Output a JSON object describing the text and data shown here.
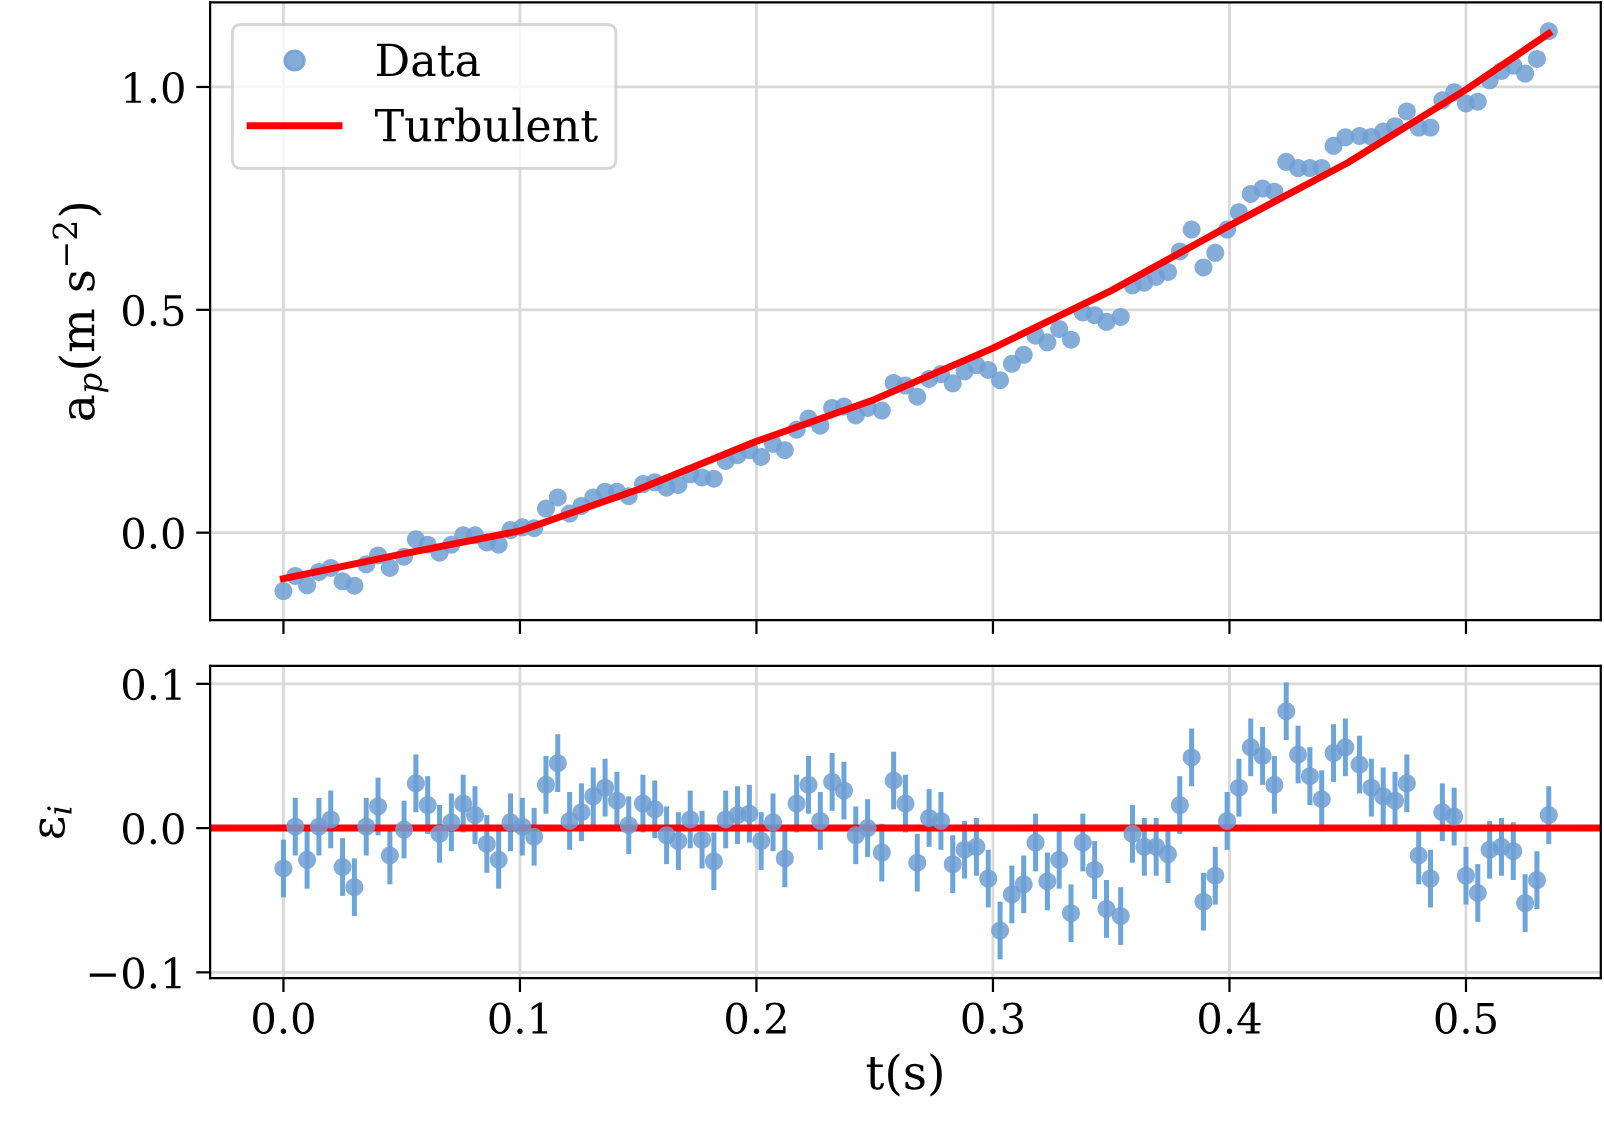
{
  "chart_data": [
    {
      "type": "scatter",
      "ylabel": "a$_{p}$(m s$^{−2}$)",
      "xlim": [
        -0.031,
        0.557
      ],
      "ylim": [
        -0.196,
        1.19
      ],
      "xticks": [
        {
          "value": 0.0,
          "label": null
        },
        {
          "value": 0.1,
          "label": null
        },
        {
          "value": 0.2,
          "label": null
        },
        {
          "value": 0.3,
          "label": null
        },
        {
          "value": 0.4,
          "label": null
        },
        {
          "value": 0.5,
          "label": null
        }
      ],
      "yticks": [
        {
          "value": 0.0,
          "label": "0.0"
        },
        {
          "value": 0.5,
          "label": "0.5"
        },
        {
          "value": 1.0,
          "label": "1.0"
        }
      ],
      "tick_labels": "y",
      "grid": true,
      "legend": "top left",
      "x": [
        0,
        0.005,
        0.01,
        0.015,
        0.02,
        0.025,
        0.03,
        0.035,
        0.04,
        0.045,
        0.051,
        0.056,
        0.061,
        0.066,
        0.071,
        0.076,
        0.081,
        0.086,
        0.091,
        0.096,
        0.101,
        0.106,
        0.111,
        0.116,
        0.121,
        0.126,
        0.131,
        0.136,
        0.141,
        0.146,
        0.152,
        0.157,
        0.162,
        0.167,
        0.172,
        0.177,
        0.182,
        0.187,
        0.192,
        0.197,
        0.202,
        0.207,
        0.212,
        0.217,
        0.222,
        0.227,
        0.232,
        0.237,
        0.242,
        0.247,
        0.253,
        0.258,
        0.263,
        0.268,
        0.273,
        0.278,
        0.283,
        0.288,
        0.293,
        0.298,
        0.303,
        0.308,
        0.313,
        0.318,
        0.323,
        0.328,
        0.333,
        0.338,
        0.343,
        0.348,
        0.354,
        0.359,
        0.364,
        0.369,
        0.374,
        0.379,
        0.384,
        0.389,
        0.394,
        0.399,
        0.404,
        0.409,
        0.414,
        0.419,
        0.424,
        0.429,
        0.434,
        0.439,
        0.444,
        0.449,
        0.455,
        0.46,
        0.465,
        0.47,
        0.475,
        0.48,
        0.485,
        0.49,
        0.495,
        0.5,
        0.505,
        0.51,
        0.515,
        0.52,
        0.525,
        0.53,
        0.535
      ],
      "series": [
        {
          "name": "Data",
          "marker": "circle",
          "color": "#6f9fd3",
          "values": [
            -0.131,
            -0.097,
            -0.118,
            -0.088,
            -0.079,
            -0.109,
            -0.119,
            -0.071,
            -0.051,
            -0.079,
            -0.054,
            -0.015,
            -0.027,
            -0.045,
            -0.027,
            -0.006,
            -0.006,
            -0.022,
            -0.027,
            0.006,
            0.012,
            0.01,
            0.054,
            0.079,
            0.043,
            0.06,
            0.079,
            0.092,
            0.092,
            0.082,
            0.109,
            0.113,
            0.101,
            0.107,
            0.131,
            0.124,
            0.121,
            0.161,
            0.174,
            0.185,
            0.17,
            0.199,
            0.185,
            0.231,
            0.256,
            0.24,
            0.28,
            0.283,
            0.263,
            0.28,
            0.274,
            0.336,
            0.33,
            0.305,
            0.345,
            0.356,
            0.335,
            0.362,
            0.376,
            0.365,
            0.342,
            0.379,
            0.399,
            0.442,
            0.427,
            0.457,
            0.433,
            0.494,
            0.488,
            0.473,
            0.484,
            0.555,
            0.561,
            0.574,
            0.585,
            0.631,
            0.68,
            0.595,
            0.628,
            0.68,
            0.719,
            0.76,
            0.772,
            0.765,
            0.832,
            0.818,
            0.818,
            0.818,
            0.868,
            0.887,
            0.89,
            0.888,
            0.9,
            0.912,
            0.945,
            0.909,
            0.909,
            0.97,
            0.988,
            0.963,
            0.967,
            1.015,
            1.036,
            1.048,
            1.03,
            1.063,
            1.125
          ]
        },
        {
          "name": "Turbulent",
          "type": "line",
          "color": "#ff0000",
          "x": [
            0,
            0.05,
            0.1,
            0.15,
            0.2,
            0.25,
            0.3,
            0.35,
            0.4,
            0.45,
            0.5,
            0.535
          ],
          "values": [
            -0.103,
            -0.048,
            0.004,
            0.097,
            0.205,
            0.299,
            0.414,
            0.543,
            0.689,
            0.83,
            0.994,
            1.12
          ]
        }
      ]
    },
    {
      "type": "scatter",
      "xlabel": "t(s)",
      "ylabel": "ε$_{i}$",
      "xlim": [
        -0.031,
        0.557
      ],
      "ylim": [
        -0.104,
        0.1125
      ],
      "xticks": [
        {
          "value": 0.0,
          "label": "0.0"
        },
        {
          "value": 0.1,
          "label": "0.1"
        },
        {
          "value": 0.2,
          "label": "0.2"
        },
        {
          "value": 0.3,
          "label": "0.3"
        },
        {
          "value": 0.4,
          "label": "0.4"
        },
        {
          "value": 0.5,
          "label": "0.5"
        }
      ],
      "yticks": [
        {
          "value": -0.1,
          "label": "−0.1"
        },
        {
          "value": 0.0,
          "label": "0.0"
        },
        {
          "value": 0.1,
          "label": "0.1"
        }
      ],
      "grid": true,
      "ref_lines": [
        {
          "axis": "y",
          "value": 0,
          "color": "#ff0000"
        }
      ],
      "x": [
        0,
        0.005,
        0.01,
        0.015,
        0.02,
        0.025,
        0.03,
        0.035,
        0.04,
        0.045,
        0.051,
        0.056,
        0.061,
        0.066,
        0.071,
        0.076,
        0.081,
        0.086,
        0.091,
        0.096,
        0.101,
        0.106,
        0.111,
        0.116,
        0.121,
        0.126,
        0.131,
        0.136,
        0.141,
        0.146,
        0.152,
        0.157,
        0.162,
        0.167,
        0.172,
        0.177,
        0.182,
        0.187,
        0.192,
        0.197,
        0.202,
        0.207,
        0.212,
        0.217,
        0.222,
        0.227,
        0.232,
        0.237,
        0.242,
        0.247,
        0.253,
        0.258,
        0.263,
        0.268,
        0.273,
        0.278,
        0.283,
        0.288,
        0.293,
        0.298,
        0.303,
        0.308,
        0.313,
        0.318,
        0.323,
        0.328,
        0.333,
        0.338,
        0.343,
        0.348,
        0.354,
        0.359,
        0.364,
        0.369,
        0.374,
        0.379,
        0.384,
        0.389,
        0.394,
        0.399,
        0.404,
        0.409,
        0.414,
        0.419,
        0.424,
        0.429,
        0.434,
        0.439,
        0.444,
        0.449,
        0.455,
        0.46,
        0.465,
        0.47,
        0.475,
        0.48,
        0.485,
        0.49,
        0.495,
        0.5,
        0.505,
        0.51,
        0.515,
        0.52,
        0.525,
        0.53,
        0.535
      ],
      "series": [
        {
          "marker": "circle",
          "color": "#6f9fd3",
          "values": [
            -0.028,
            0.001,
            -0.022,
            0.001,
            0.006,
            -0.027,
            -0.041,
            0.001,
            0.015,
            -0.019,
            -0.001,
            0.031,
            0.016,
            -0.004,
            0.004,
            0.017,
            0.009,
            -0.011,
            -0.022,
            0.004,
            0.001,
            -0.006,
            0.03,
            0.045,
            0.005,
            0.011,
            0.022,
            0.028,
            0.019,
            0.002,
            0.017,
            0.013,
            -0.005,
            -0.009,
            0.006,
            -0.008,
            -0.023,
            0.006,
            0.009,
            0.01,
            -0.009,
            0.004,
            -0.021,
            0.017,
            0.03,
            0.005,
            0.032,
            0.026,
            -0.005,
            0.0,
            -0.017,
            0.033,
            0.017,
            -0.024,
            0.007,
            0.005,
            -0.025,
            -0.015,
            -0.013,
            -0.035,
            -0.071,
            -0.046,
            -0.039,
            -0.01,
            -0.037,
            -0.022,
            -0.059,
            -0.01,
            -0.029,
            -0.056,
            -0.061,
            -0.004,
            -0.013,
            -0.013,
            -0.018,
            0.016,
            0.049,
            -0.051,
            -0.033,
            0.005,
            0.028,
            0.056,
            0.05,
            0.03,
            0.081,
            0.051,
            0.036,
            0.02,
            0.052,
            0.056,
            0.044,
            0.028,
            0.022,
            0.019,
            0.031,
            -0.019,
            -0.035,
            0.011,
            0.008,
            -0.033,
            -0.045,
            -0.015,
            -0.013,
            -0.016,
            -0.052,
            -0.036,
            0.009
          ],
          "errors": [
            0.02,
            0.02,
            0.02,
            0.02,
            0.02,
            0.02,
            0.02,
            0.02,
            0.02,
            0.02,
            0.02,
            0.02,
            0.02,
            0.02,
            0.02,
            0.02,
            0.02,
            0.02,
            0.02,
            0.02,
            0.02,
            0.02,
            0.02,
            0.02,
            0.02,
            0.02,
            0.02,
            0.02,
            0.02,
            0.02,
            0.02,
            0.02,
            0.02,
            0.02,
            0.02,
            0.02,
            0.02,
            0.02,
            0.02,
            0.02,
            0.02,
            0.02,
            0.02,
            0.02,
            0.02,
            0.02,
            0.02,
            0.02,
            0.02,
            0.02,
            0.02,
            0.02,
            0.02,
            0.02,
            0.02,
            0.02,
            0.02,
            0.02,
            0.02,
            0.02,
            0.02,
            0.02,
            0.02,
            0.02,
            0.02,
            0.02,
            0.02,
            0.02,
            0.02,
            0.02,
            0.02,
            0.02,
            0.02,
            0.02,
            0.02,
            0.02,
            0.02,
            0.02,
            0.02,
            0.02,
            0.02,
            0.02,
            0.02,
            0.02,
            0.02,
            0.02,
            0.02,
            0.02,
            0.02,
            0.02,
            0.02,
            0.02,
            0.02,
            0.02,
            0.02,
            0.02,
            0.02,
            0.02,
            0.02,
            0.02,
            0.02,
            0.02,
            0.02,
            0.02,
            0.02,
            0.02,
            0.02
          ]
        }
      ]
    }
  ]
}
